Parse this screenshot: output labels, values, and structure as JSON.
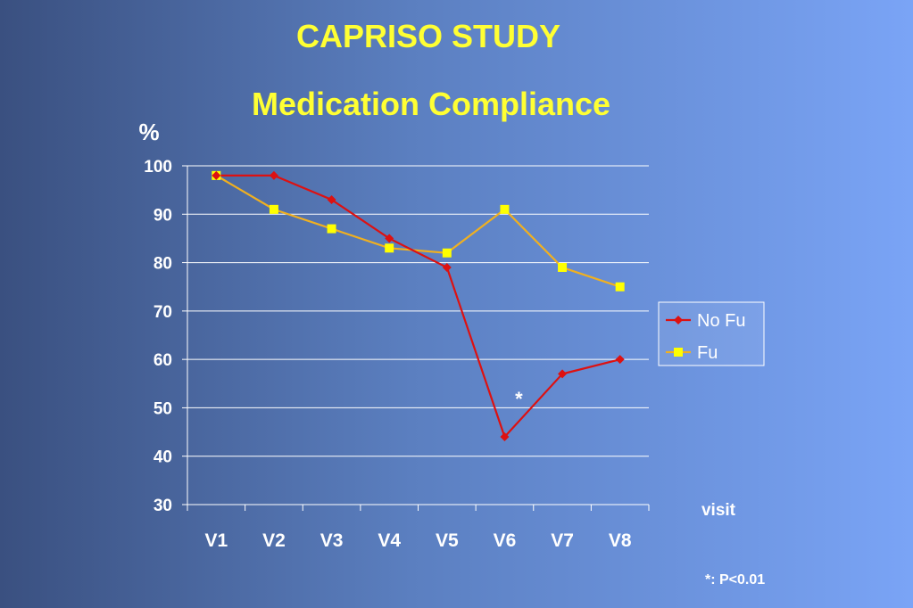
{
  "slide": {
    "title": "CAPRISO STUDY",
    "subtitle": "Medication Compliance",
    "footnote": "*: P<0.01"
  },
  "colors": {
    "no_fu": "#dd1111",
    "fu_line": "#f0b020",
    "fu_marker": "#ffff00",
    "title": "#ffff33"
  },
  "chart_data": {
    "type": "line",
    "title": "Medication Compliance",
    "ylabel": "%",
    "xlabel": "visit",
    "categories": [
      "V1",
      "V2",
      "V3",
      "V4",
      "V5",
      "V6",
      "V7",
      "V8"
    ],
    "ylim": [
      30,
      100
    ],
    "yticks": [
      30,
      40,
      50,
      60,
      70,
      80,
      90,
      100
    ],
    "grid": true,
    "legend_position": "right",
    "series": [
      {
        "name": "No Fu",
        "values": [
          98,
          98,
          93,
          85,
          79,
          44,
          57,
          60
        ],
        "marker": "diamond"
      },
      {
        "name": "Fu",
        "values": [
          98,
          91,
          87,
          83,
          82,
          91,
          79,
          75
        ],
        "marker": "square"
      }
    ],
    "annotations": [
      {
        "text": "*",
        "category": "V6"
      }
    ]
  }
}
